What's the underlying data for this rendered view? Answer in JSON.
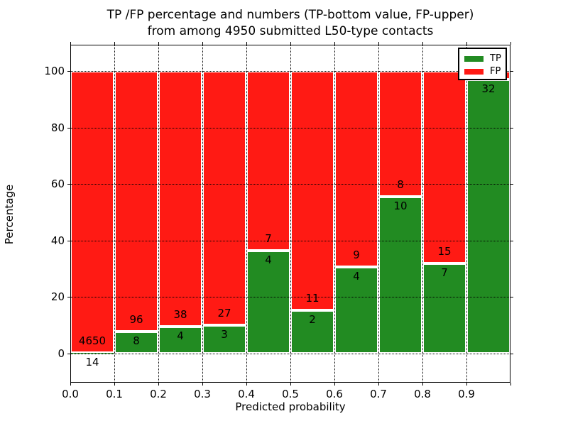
{
  "title": {
    "line1": "TP /FP percentage and numbers (TP-bottom value, FP-upper)",
    "line2": "from among 4950 submitted L50-type contacts"
  },
  "axes": {
    "xlabel": "Predicted probability",
    "ylabel": "Percentage",
    "x_tick_labels": [
      "0.0",
      "0.1",
      "0.2",
      "0.3",
      "0.4",
      "0.5",
      "0.6",
      "0.7",
      "0.8",
      "0.9"
    ],
    "y_tick_labels": [
      "0",
      "20",
      "40",
      "60",
      "80",
      "100"
    ],
    "y_tick_values": [
      0,
      20,
      40,
      60,
      80,
      100
    ],
    "xlim": [
      0.0,
      1.0
    ],
    "ylim": [
      -10,
      110
    ],
    "grid": "dotted"
  },
  "legend": {
    "items": [
      {
        "label": "TP",
        "color": "#228b22"
      },
      {
        "label": "FP",
        "color": "#ff1a14"
      }
    ],
    "position": "upper-right"
  },
  "colors": {
    "tp": "#228b22",
    "fp": "#ff1a14",
    "bar_edge": "#ffffff",
    "background": "#ffffff",
    "axis": "#000000"
  },
  "chart_data": {
    "type": "bar",
    "stacked": true,
    "normalized": "percent",
    "title": "TP /FP percentage and numbers (TP-bottom value, FP-upper) from among 4950 submitted L50-type contacts",
    "xlabel": "Predicted probability",
    "ylabel": "Percentage",
    "total_contacts": 4950,
    "bin_width": 0.1,
    "bins": [
      {
        "range": [
          0.0,
          0.1
        ],
        "tp": 14,
        "fp": 4650,
        "tp_pct": 0.3,
        "fp_label": "4650",
        "tp_label": "14"
      },
      {
        "range": [
          0.1,
          0.2
        ],
        "tp": 8,
        "fp": 96,
        "tp_pct": 7.69,
        "fp_label": "96",
        "tp_label": "8"
      },
      {
        "range": [
          0.2,
          0.3
        ],
        "tp": 4,
        "fp": 38,
        "tp_pct": 9.52,
        "fp_label": "38",
        "tp_label": "4"
      },
      {
        "range": [
          0.3,
          0.4
        ],
        "tp": 3,
        "fp": 27,
        "tp_pct": 10.0,
        "fp_label": "27",
        "tp_label": "3"
      },
      {
        "range": [
          0.4,
          0.5
        ],
        "tp": 4,
        "fp": 7,
        "tp_pct": 36.36,
        "fp_label": "7",
        "tp_label": "4"
      },
      {
        "range": [
          0.5,
          0.6
        ],
        "tp": 2,
        "fp": 11,
        "tp_pct": 15.38,
        "fp_label": "11",
        "tp_label": "2"
      },
      {
        "range": [
          0.6,
          0.7
        ],
        "tp": 4,
        "fp": 9,
        "tp_pct": 30.77,
        "fp_label": "9",
        "tp_label": "4"
      },
      {
        "range": [
          0.7,
          0.8
        ],
        "tp": 10,
        "fp": 8,
        "tp_pct": 55.56,
        "fp_label": "8",
        "tp_label": "10"
      },
      {
        "range": [
          0.8,
          0.9
        ],
        "tp": 7,
        "fp": 15,
        "tp_pct": 31.82,
        "fp_label": "15",
        "tp_label": "7"
      },
      {
        "range": [
          0.9,
          1.0
        ],
        "tp": 32,
        "fp": 1,
        "tp_pct": 96.97,
        "fp_label": "",
        "tp_label": "32"
      }
    ]
  }
}
